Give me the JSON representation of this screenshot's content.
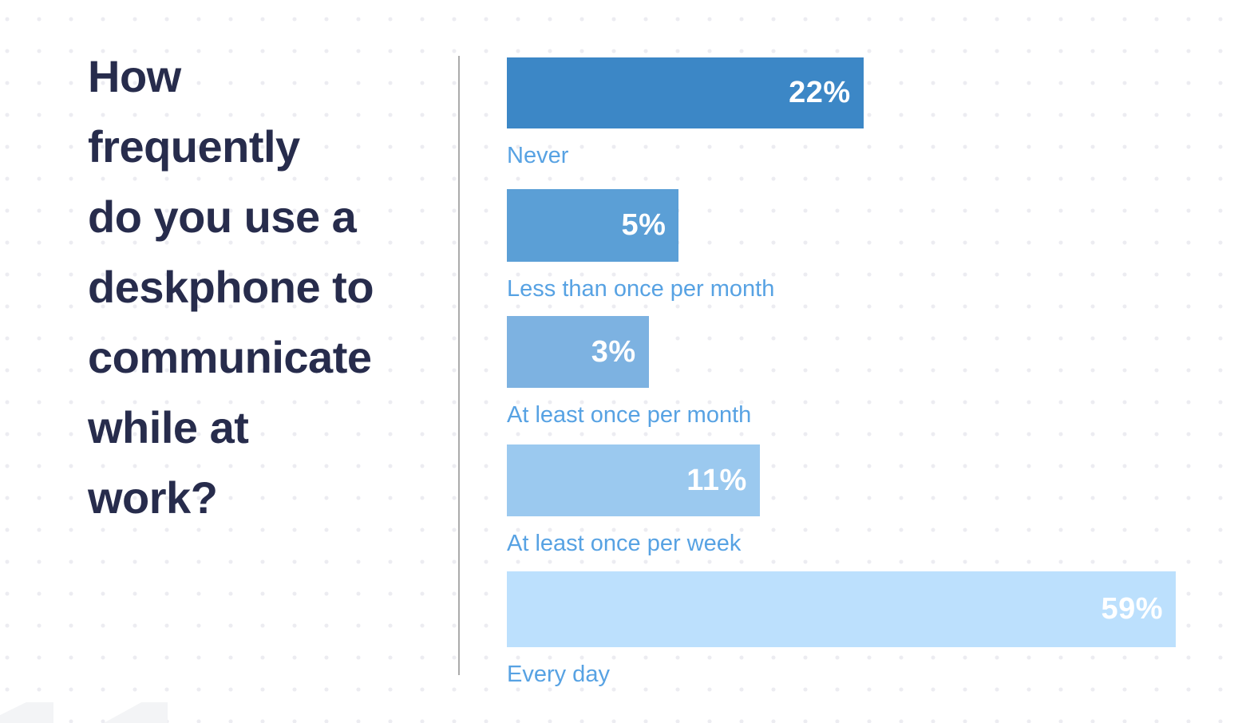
{
  "question": {
    "text": "How frequently do you use a deskphone to communicate while at work?",
    "lines": [
      "How",
      "frequently",
      "do you use a",
      "deskphone to",
      "communicate",
      "while at",
      "work?"
    ]
  },
  "chart_data": {
    "type": "bar",
    "orientation": "horizontal",
    "title": "How frequently do you use a deskphone to communicate while at work?",
    "categories": [
      "Never",
      "Less than once per month",
      "At least once per month",
      "At least once per week",
      "Every day"
    ],
    "values": [
      22,
      5,
      3,
      11,
      59
    ],
    "value_labels": [
      "22%",
      "5%",
      "3%",
      "11%",
      "59%"
    ],
    "bar_colors": [
      "#3c87c6",
      "#5b9fd6",
      "#7db2e1",
      "#9bc9ef",
      "#bce0fd"
    ],
    "bar_width_pct_of_max": [
      53.3,
      25.7,
      21.2,
      37.8,
      100
    ],
    "value_label_color": "#ffffff",
    "category_label_color": "#57a2e3",
    "value_label_position": "inside-right",
    "category_label_position": "below-bar",
    "legend": false,
    "grid": false
  },
  "colors": {
    "background": "#ffffff",
    "dot_grid": "#ececf1",
    "title_text": "#272c4c",
    "divider": "#ababab",
    "corner_shapes": "#f3f4f6"
  }
}
